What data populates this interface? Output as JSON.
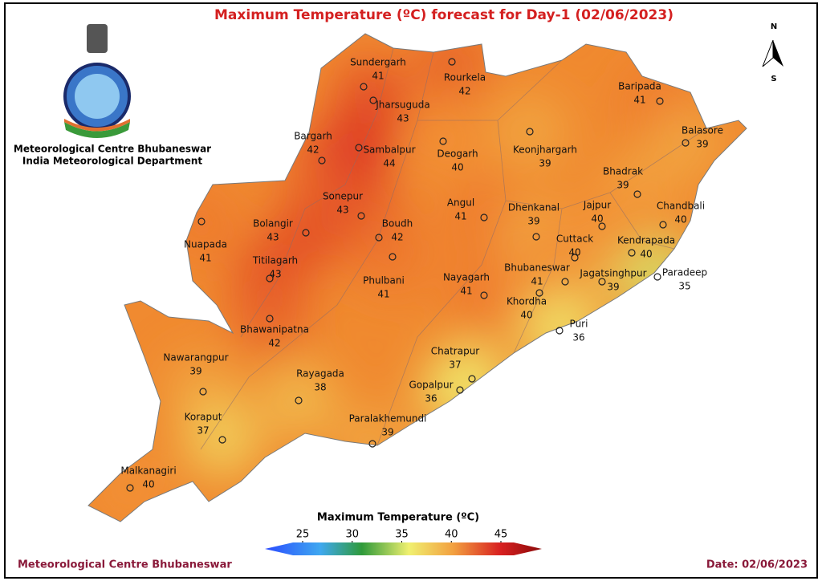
{
  "header": {
    "title": "Maximum Temperature (ºC) forecast for Day-1 (02/06/2023)",
    "org_line1": "Meteorological Centre Bhubaneswar",
    "org_line2": "India Meteorological Department"
  },
  "compass": {
    "north": "N",
    "south": "S"
  },
  "stations": [
    {
      "name": "Sundergarh",
      "temp": 41
    },
    {
      "name": "Rourkela",
      "temp": 42
    },
    {
      "name": "Jharsuguda",
      "temp": 43
    },
    {
      "name": "Baripada",
      "temp": 41
    },
    {
      "name": "Bargarh",
      "temp": 42
    },
    {
      "name": "Sambalpur",
      "temp": 44
    },
    {
      "name": "Deogarh",
      "temp": 40
    },
    {
      "name": "Keonjhargarh",
      "temp": 39
    },
    {
      "name": "Balasore",
      "temp": 39
    },
    {
      "name": "Bhadrak",
      "temp": 39
    },
    {
      "name": "Sonepur",
      "temp": 43
    },
    {
      "name": "Angul",
      "temp": 41
    },
    {
      "name": "Dhenkanal",
      "temp": 39
    },
    {
      "name": "Jajpur",
      "temp": 40
    },
    {
      "name": "Chandbali",
      "temp": 40
    },
    {
      "name": "Bolangir",
      "temp": 43
    },
    {
      "name": "Boudh",
      "temp": 42
    },
    {
      "name": "Nuapada",
      "temp": 41
    },
    {
      "name": "Cuttack",
      "temp": 40
    },
    {
      "name": "Kendrapada",
      "temp": 40
    },
    {
      "name": "Titilagarh",
      "temp": 43
    },
    {
      "name": "Phulbani",
      "temp": 41
    },
    {
      "name": "Nayagarh",
      "temp": 41
    },
    {
      "name": "Bhubaneswar",
      "temp": 41
    },
    {
      "name": "Jagatsinghpur",
      "temp": 39
    },
    {
      "name": "Paradeep",
      "temp": 35
    },
    {
      "name": "Khordha",
      "temp": 40
    },
    {
      "name": "Bhawanipatna",
      "temp": 42
    },
    {
      "name": "Puri",
      "temp": 36
    },
    {
      "name": "Nawarangpur",
      "temp": 39
    },
    {
      "name": "Chatrapur",
      "temp": 37
    },
    {
      "name": "Rayagada",
      "temp": 38
    },
    {
      "name": "Gopalpur",
      "temp": 36
    },
    {
      "name": "Koraput",
      "temp": 37
    },
    {
      "name": "Paralakhemundi",
      "temp": 39
    },
    {
      "name": "Malkanagiri",
      "temp": 40
    }
  ],
  "legend": {
    "title": "Maximum Temperature (ºC)",
    "ticks": [
      25,
      30,
      35,
      40,
      45
    ]
  },
  "footer": {
    "left": "Meteorological Centre Bhubaneswar",
    "right": "Date: 02/06/2023"
  }
}
